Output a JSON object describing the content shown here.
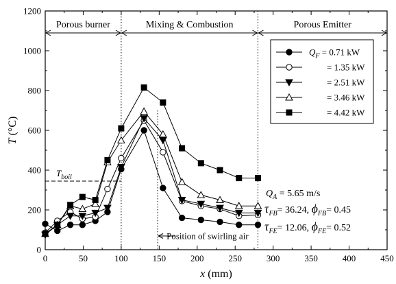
{
  "chart_data": {
    "type": "line",
    "xlabel_var": "x",
    "xlabel_unit": "(mm)",
    "ylabel_var": "T",
    "ylabel_unit": "(°C)",
    "xlim": [
      0,
      450
    ],
    "ylim": [
      0,
      1200
    ],
    "xticks": [
      0,
      50,
      100,
      150,
      200,
      250,
      300,
      350,
      400,
      450
    ],
    "yticks": [
      0,
      200,
      400,
      600,
      800,
      1000,
      1200
    ],
    "grid": false,
    "legend_position": "top-right",
    "regions": [
      {
        "label": "Porous burner",
        "from": 0,
        "to": 100
      },
      {
        "label": "Mixing & Combustion",
        "from": 100,
        "to": 280
      },
      {
        "label": "Porous Emitter",
        "from": 280,
        "to": 450
      }
    ],
    "region_dividers": [
      100,
      280
    ],
    "swirl_line": 148,
    "annotations": {
      "tboil_var": "T",
      "tboil_sub": "boil",
      "tboil_value": 345,
      "swirl_label": "Position of swirling air"
    },
    "conditions": {
      "qa_label": "Q",
      "qa_sub": "A",
      "qa_text": " = 5.65 m/s",
      "fb_tau": "36.24",
      "fb_phi": "0.45",
      "fe_tau": "12.06",
      "fe_phi": "0.52",
      "fb_sub": "FB",
      "fe_sub": "FE"
    },
    "x": [
      0,
      16,
      33,
      49,
      66,
      82,
      100,
      130,
      155,
      180,
      205,
      230,
      255,
      280
    ],
    "series": [
      {
        "name": "Q_F = 0.71 kW",
        "legend_text": "= 0.71 kW",
        "marker": "filled-circle",
        "values": [
          130,
          95,
          125,
          125,
          145,
          190,
          405,
          600,
          310,
          160,
          150,
          140,
          125,
          125
        ]
      },
      {
        "name": "Q_F = 1.35 kW",
        "legend_text": "= 1.35 kW",
        "marker": "open-circle",
        "values": [
          85,
          145,
          190,
          155,
          165,
          305,
          460,
          650,
          490,
          245,
          220,
          205,
          170,
          175
        ]
      },
      {
        "name": "Q_F = 2.51 kW",
        "legend_text": "= 2.51 kW",
        "marker": "filled-triangle-down",
        "values": [
          75,
          125,
          170,
          170,
          185,
          210,
          415,
          660,
          550,
          250,
          230,
          210,
          185,
          185
        ]
      },
      {
        "name": "Q_F = 3.46 kW",
        "legend_text": "= 3.46 kW",
        "marker": "open-triangle-up",
        "values": [
          80,
          125,
          220,
          205,
          230,
          440,
          550,
          695,
          580,
          340,
          275,
          250,
          220,
          220
        ]
      },
      {
        "name": "Q_F = 4.42 kW",
        "legend_text": "= 4.42 kW",
        "marker": "filled-square",
        "values": [
          80,
          125,
          225,
          265,
          250,
          450,
          610,
          815,
          740,
          510,
          435,
          400,
          360,
          360
        ]
      }
    ],
    "legend_first_prefix_var": "Q",
    "legend_first_prefix_sub": "F"
  }
}
